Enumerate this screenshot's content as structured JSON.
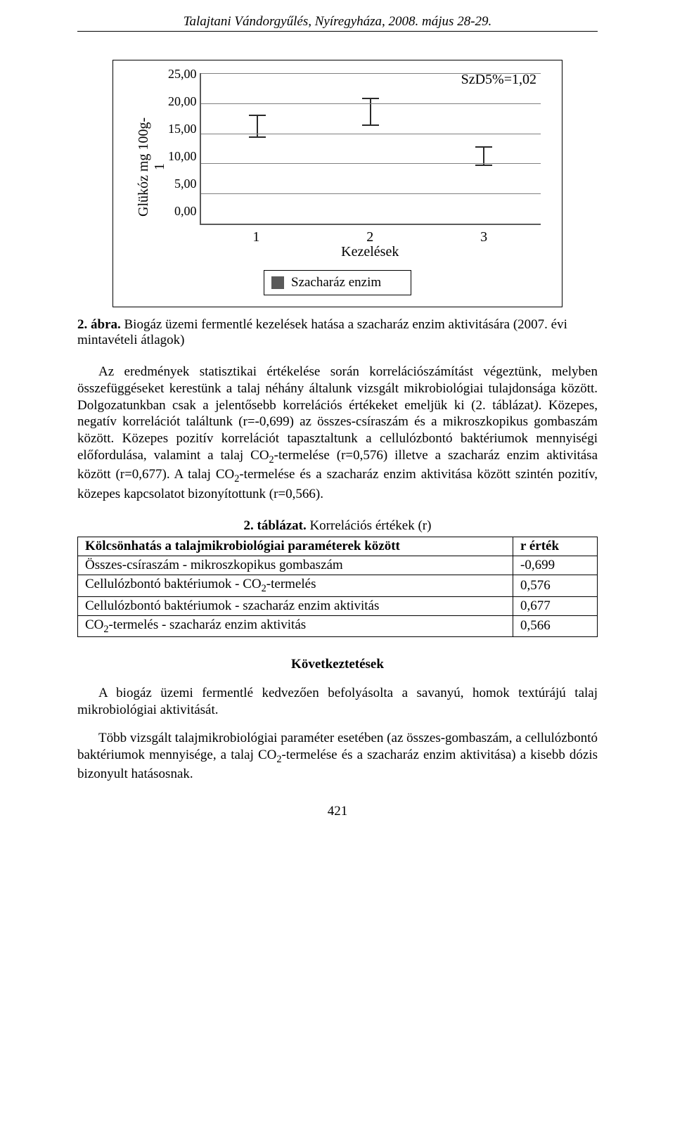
{
  "header": "Talajtani Vándorgyűlés, Nyíregyháza, 2008. május 28-29.",
  "chart": {
    "type": "bar",
    "ylabel": [
      "Glükóz mg 100g-",
      "1"
    ],
    "yticks": [
      "25,00",
      "20,00",
      "15,00",
      "10,00",
      "5,00",
      "0,00"
    ],
    "ymax": 25,
    "grid_positions_pct": [
      0,
      20,
      40,
      60,
      80
    ],
    "szd_label": "SzD5%=1,02",
    "categories": [
      "1",
      "2",
      "3"
    ],
    "xaxis_title": "Kezelések",
    "bars": [
      {
        "value": 16.2,
        "err_low": 14.2,
        "err_high": 17.8
      },
      {
        "value": 18.5,
        "err_low": 16.2,
        "err_high": 20.6
      },
      {
        "value": 11.0,
        "err_low": 9.6,
        "err_high": 12.6
      }
    ],
    "bar_color": "#5a5a5a",
    "legend_label": "Szacharáz enzim"
  },
  "fig_caption_bold": "2. ábra.",
  "fig_caption_rest": " Biogáz üzemi fermentlé kezelések hatása a szacharáz enzim aktivitására (2007. évi mintavételi átlagok)",
  "para1_html": "Az eredmények statisztikai értékelése során korrelációszámítást végeztünk, melyben összefüggéseket kerestünk a talaj néhány általunk vizsgált mikrobiológiai tulajdonsága között. Dolgozatunkban csak a jelentősebb korrelációs értékeket emeljük ki (2. táblázat<i>)</i>. Közepes, negatív korrelációt találtunk (r=-0,699) az összes-csíraszám és a mikroszkopikus gombaszám között. Közepes pozitív korrelációt tapasztaltunk a cellulózbontó baktériumok mennyiségi előfordulása, valamint a talaj CO<sub>2</sub>-termelése (r=0,576) illetve a szacharáz enzim aktivitása között (r=0,677). A talaj CO<sub>2</sub>-termelése és a szacharáz enzim aktivitása között szintén pozitív, közepes kapcsolatot bizonyítottunk (r=0,566).",
  "table": {
    "title_bold": "2. táblázat.",
    "title_rest": " Korrelációs értékek (r)",
    "col1": "Kölcsönhatás a talajmikrobiológiai paraméterek között",
    "col2": "r érték",
    "rows": [
      {
        "label_html": "Összes-csíraszám - mikroszkopikus gombaszám",
        "value": "-0,699"
      },
      {
        "label_html": "Cellulózbontó baktériumok - CO<sub>2</sub>-termelés",
        "value": "0,576"
      },
      {
        "label_html": "Cellulózbontó baktériumok - szacharáz enzim aktivitás",
        "value": "0,677"
      },
      {
        "label_html": "CO<sub>2</sub>-termelés - szacharáz enzim aktivitás",
        "value": "0,566"
      }
    ]
  },
  "section_title": "Következtetések",
  "conclusion_p1": "A biogáz üzemi fermentlé kedvezően befolyásolta a savanyú, homok textúrájú talaj mikrobiológiai aktivitását.",
  "conclusion_p2_html": "Több vizsgált talajmikrobiológiai paraméter esetében (az összes-gombaszám, a cellulózbontó baktériumok mennyisége, a talaj CO<sub>2</sub>-termelése és a szacharáz enzim aktivitása) a kisebb dózis bizonyult hatásosnak.",
  "page_number": "421"
}
